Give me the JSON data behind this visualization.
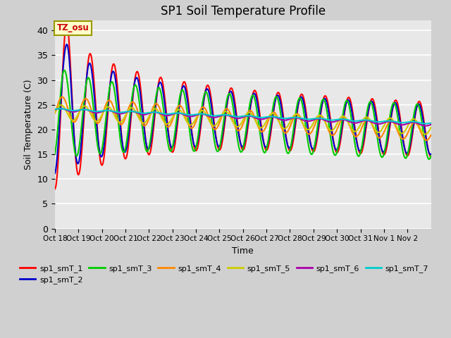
{
  "title": "SP1 Soil Temperature Profile",
  "xlabel": "Time",
  "ylabel": "Soil Temperature (C)",
  "ylim": [
    0,
    42
  ],
  "yticks": [
    0,
    5,
    10,
    15,
    20,
    25,
    30,
    35,
    40
  ],
  "legend_labels": [
    "sp1_smT_1",
    "sp1_smT_2",
    "sp1_smT_3",
    "sp1_smT_4",
    "sp1_smT_5",
    "sp1_smT_6",
    "sp1_smT_7"
  ],
  "line_colors": [
    "#ff0000",
    "#0000cc",
    "#00cc00",
    "#ff8800",
    "#cccc00",
    "#aa00aa",
    "#00cccc"
  ],
  "n_days": 16,
  "tick_labels": [
    "Oct 18",
    "Oct 19",
    "Oct 20",
    "Oct 21",
    "Oct 22",
    "Oct 23",
    "Oct 24",
    "Oct 25",
    "Oct 26",
    "Oct 27",
    "Oct 28",
    "Oct 29",
    "Oct 30",
    "Oct 31",
    "Nov 1",
    "Nov 2"
  ],
  "annotation_text": "TZ_osu",
  "fig_facecolor": "#d0d0d0",
  "ax_facecolor": "#e8e8e8",
  "grid_color": "#ffffff",
  "lw": 1.5
}
